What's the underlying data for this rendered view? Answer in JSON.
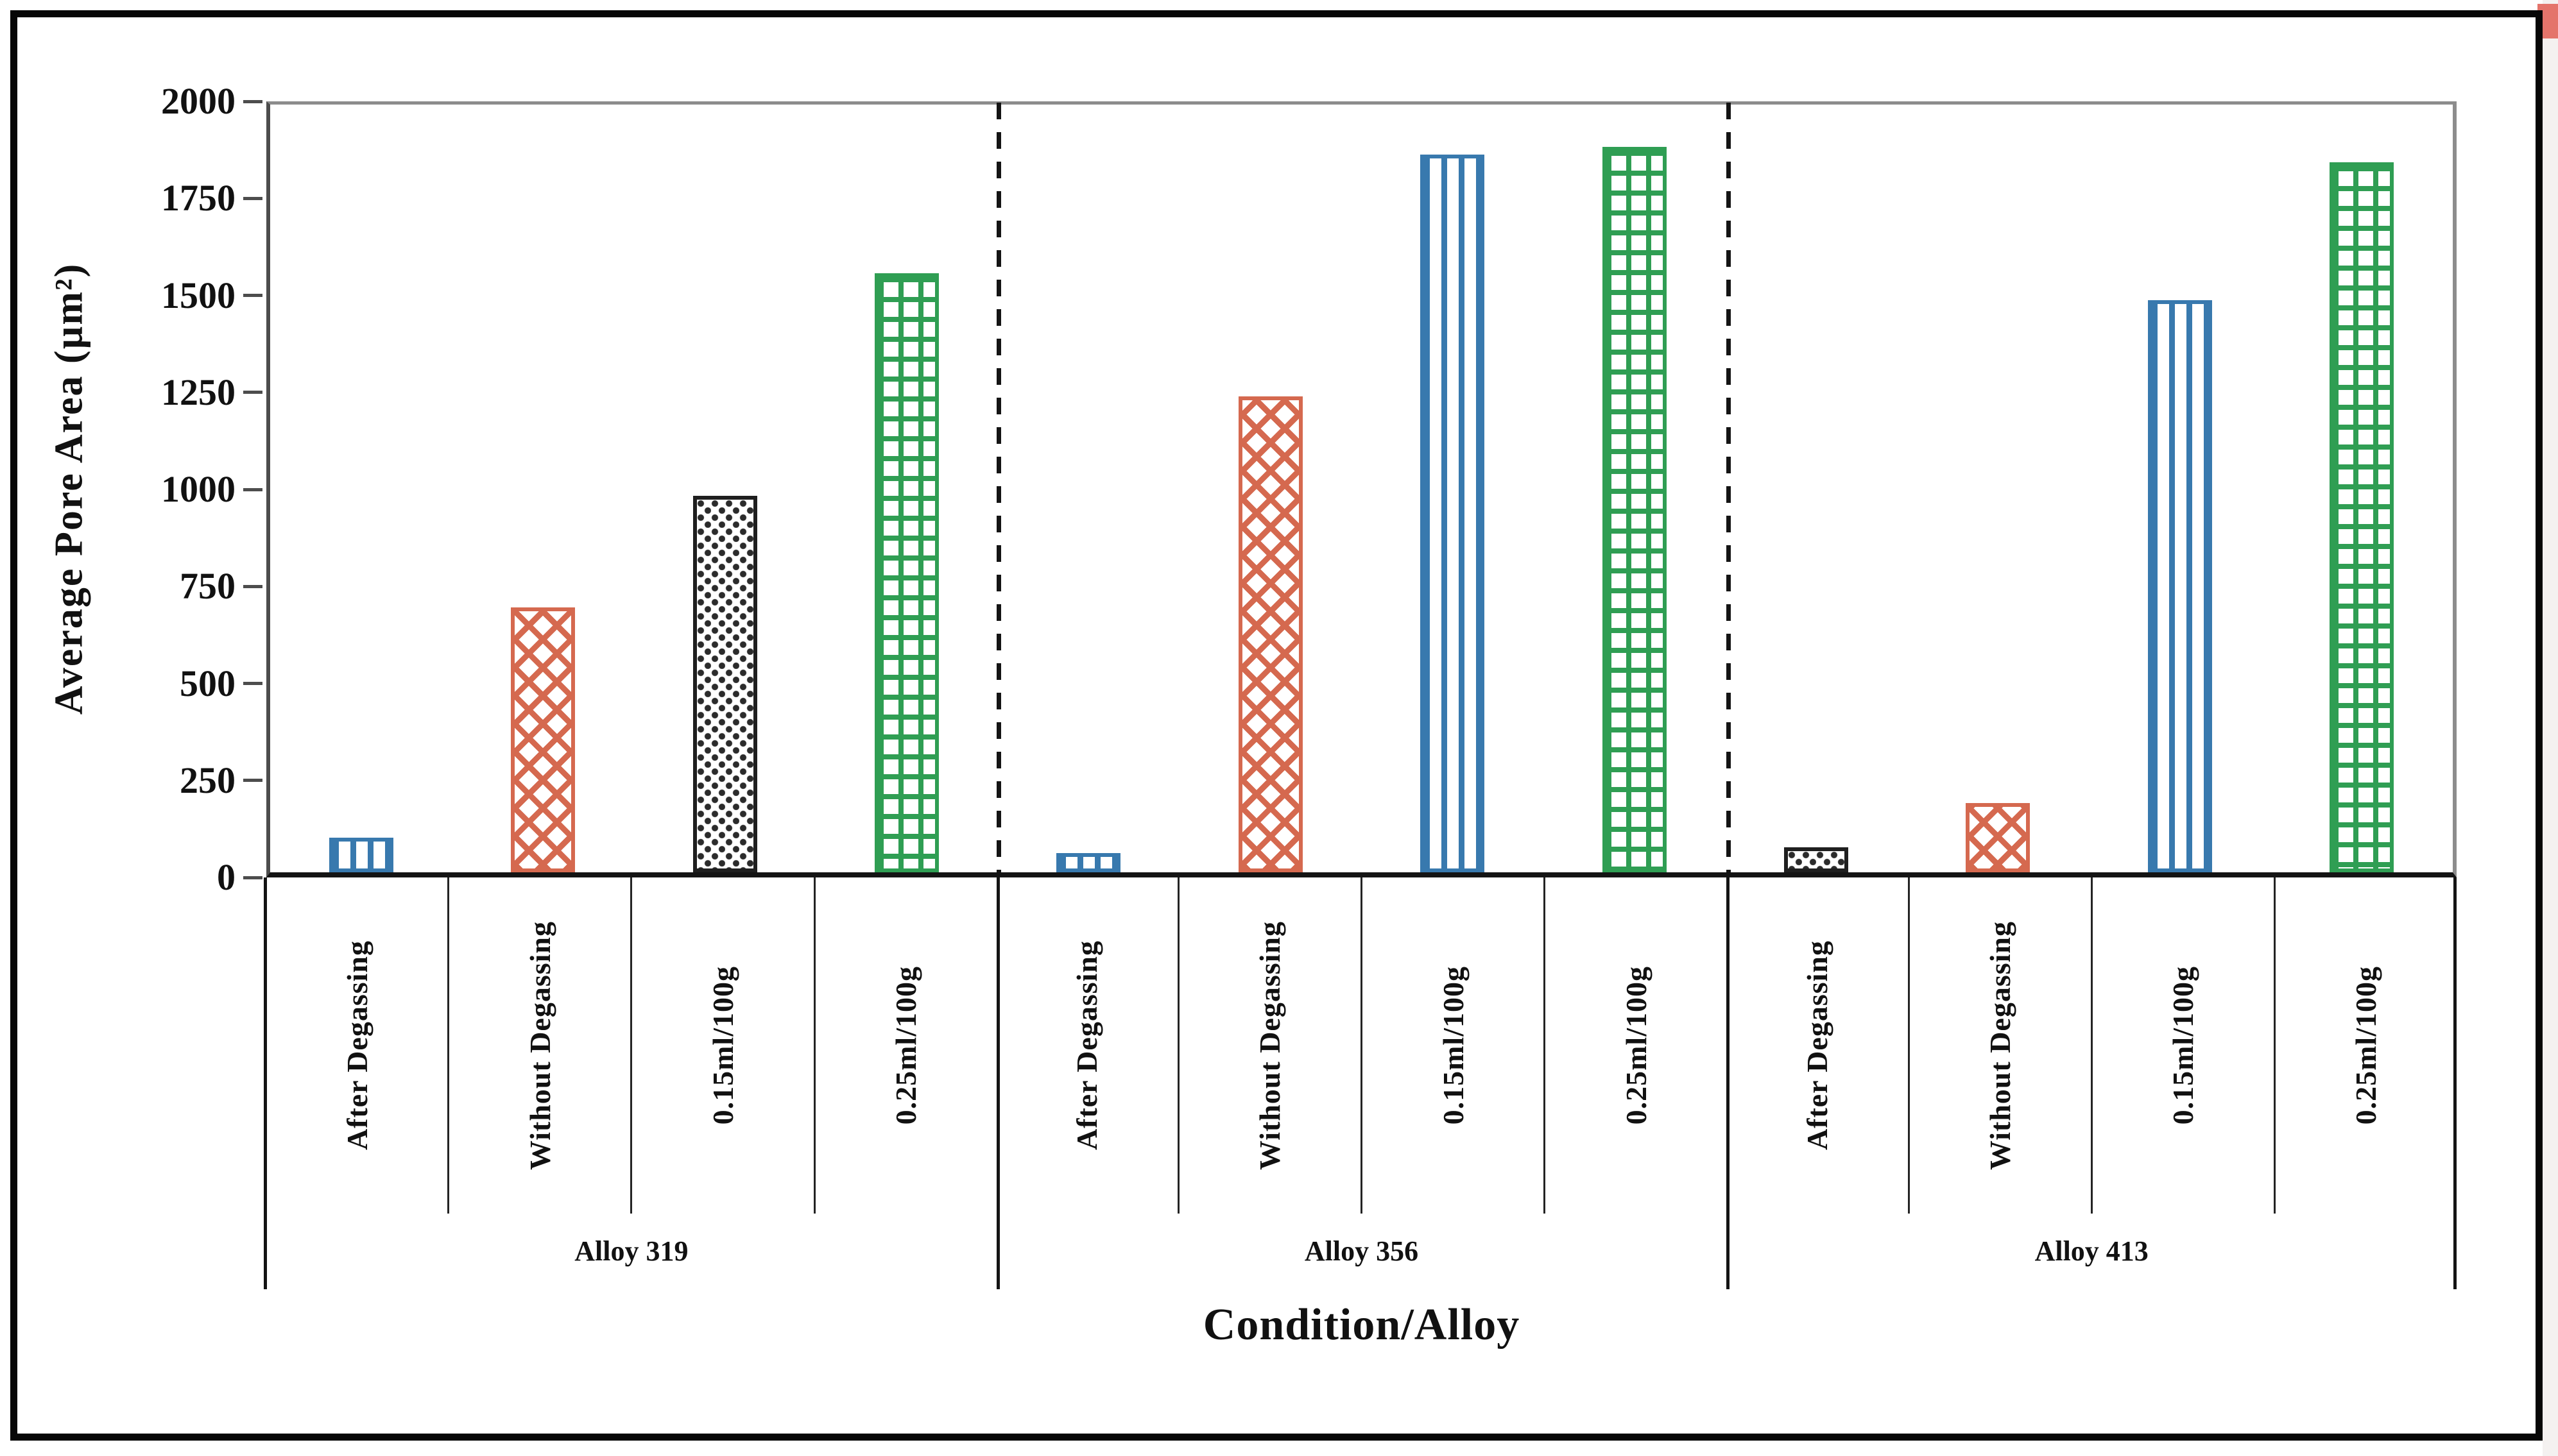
{
  "chart_data": {
    "type": "bar",
    "title": "",
    "xlabel": "Condition/Alloy",
    "ylabel": "Average Pore Area (µm²)",
    "ylim": [
      0,
      2000
    ],
    "yticks": [
      0,
      250,
      500,
      750,
      1000,
      1250,
      1500,
      1750,
      2000
    ],
    "grid": false,
    "legend_position": "none",
    "group_separator_style": "dashed",
    "categories": [
      "After Degassing",
      "Without Degassing",
      "0.15ml/100g",
      "0.25ml/100g"
    ],
    "groups": [
      {
        "label": "Alloy 319",
        "categories": [
          "After Degassing",
          "Without Degassing",
          "0.15ml/100g",
          "0.25ml/100g"
        ],
        "values": [
          90,
          690,
          980,
          1560
        ],
        "patterns": [
          "blue-vertical-stripes",
          "red-crosshatch",
          "black-dots",
          "green-grid"
        ]
      },
      {
        "label": "Alloy 356",
        "categories": [
          "After Degassing",
          "Without Degassing",
          "0.15ml/100g",
          "0.25ml/100g"
        ],
        "values": [
          50,
          1240,
          1870,
          1890
        ],
        "patterns": [
          "blue-vertical-stripes",
          "red-crosshatch",
          "blue-vertical-stripes",
          "green-grid"
        ]
      },
      {
        "label": "Alloy 413",
        "categories": [
          "After Degassing",
          "Without Degassing",
          "0.15ml/100g",
          "0.25ml/100g"
        ],
        "values": [
          65,
          180,
          1490,
          1850
        ],
        "patterns": [
          "black-dots",
          "red-crosshatch",
          "blue-vertical-stripes",
          "green-grid"
        ]
      }
    ],
    "colors": {
      "blue": "#3879ae",
      "red": "#d5694f",
      "black": "#1f1f1f",
      "green": "#2f9e53",
      "frame": "#070707",
      "plot_border": "#8c8c8c",
      "accent_corner": "#e4746b"
    }
  }
}
